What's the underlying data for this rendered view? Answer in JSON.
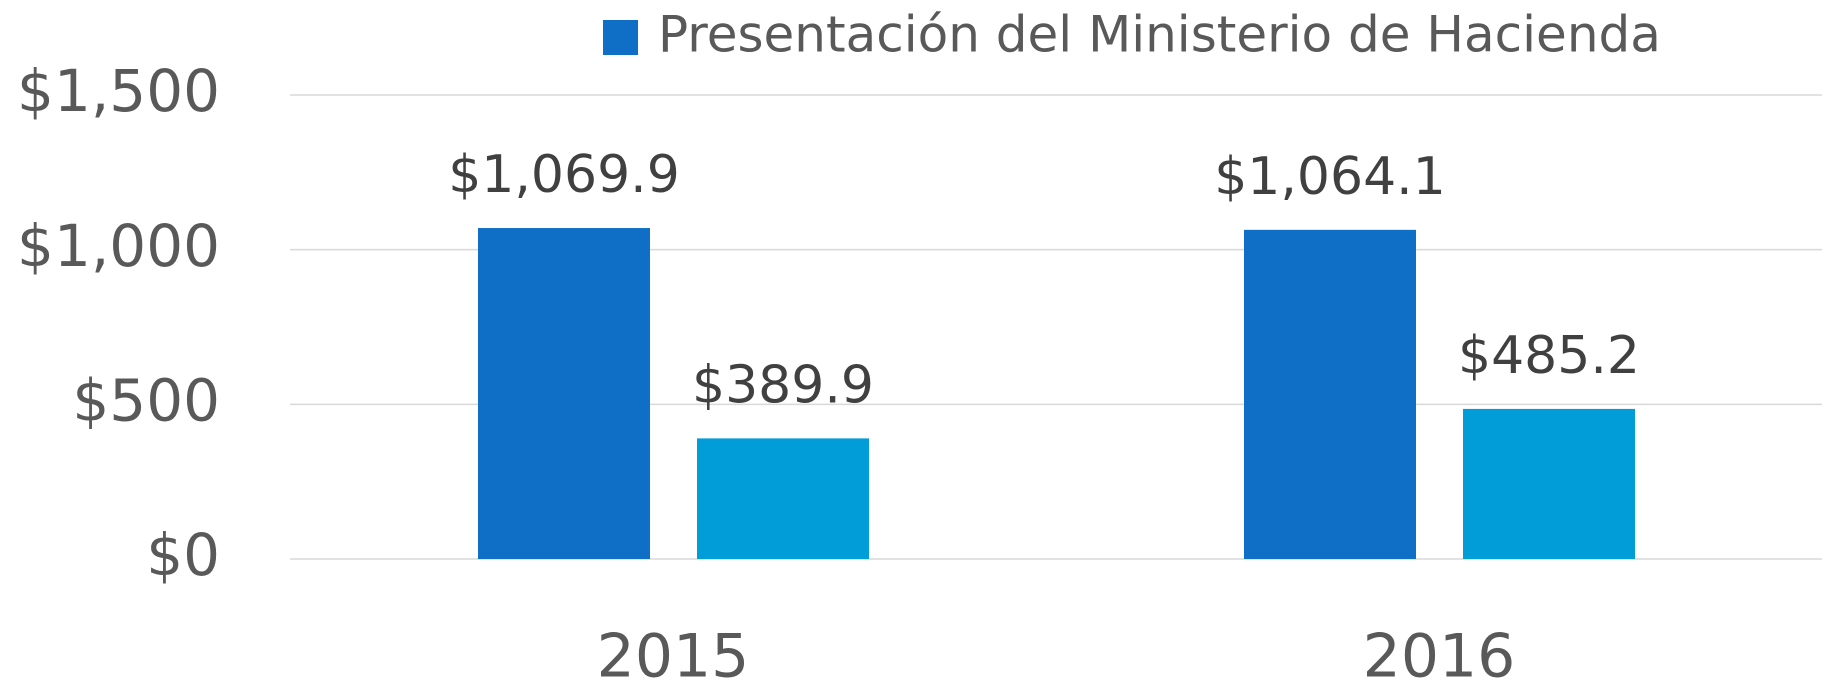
{
  "chart_data": {
    "type": "bar",
    "categories": [
      "2015",
      "2016"
    ],
    "series": [
      {
        "name": "Presentación del Ministerio de Hacienda",
        "color": "#0f6fc6",
        "values": [
          1069.9,
          1064.1
        ],
        "value_labels": [
          "$1,069.9",
          "$1,064.1"
        ]
      },
      {
        "color": "#009dd9",
        "values": [
          389.9,
          485.2
        ],
        "value_labels": [
          "$389.9",
          "$485.2"
        ]
      }
    ],
    "ylim": [
      0,
      1500
    ],
    "yticks": [
      {
        "value": 0,
        "label": "$0"
      },
      {
        "value": 500,
        "label": "$500"
      },
      {
        "value": 1000,
        "label": "$1,000"
      },
      {
        "value": 1500,
        "label": "$1,500"
      }
    ],
    "grid": true,
    "legend": "top"
  }
}
